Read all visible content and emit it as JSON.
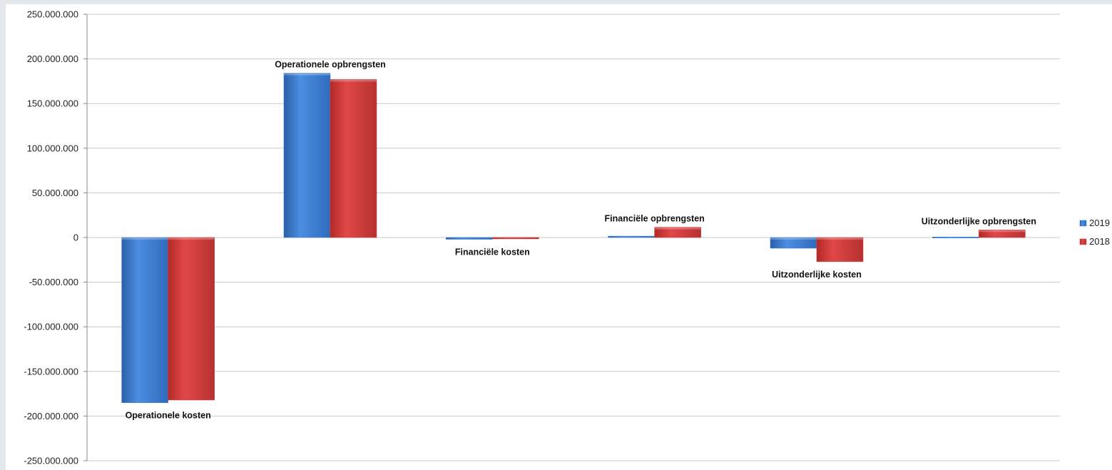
{
  "chart_data": {
    "type": "bar",
    "categories": [
      "Operationele kosten",
      "Operationele opbrengsten",
      "Financiële kosten",
      "Financiële opbrengsten",
      "Uitzonderlijke kosten",
      "Uitzonderlijke opbrengsten"
    ],
    "series": [
      {
        "name": "2019",
        "color": "#3f7fd1",
        "values": [
          -185000000,
          184000000,
          -2000000,
          1500000,
          -12000000,
          500000
        ]
      },
      {
        "name": "2018",
        "color": "#d83a3a",
        "values": [
          -182000000,
          177000000,
          -1500000,
          11500000,
          -27000000,
          8500000
        ]
      }
    ],
    "ylim": [
      -250000000,
      250000000
    ],
    "yticks": [
      250000000,
      200000000,
      150000000,
      100000000,
      50000000,
      0,
      -50000000,
      -100000000,
      -150000000,
      -200000000,
      -250000000
    ],
    "ytick_labels": [
      "250.000.000",
      "200.000.000",
      "150.000.000",
      "100.000.000",
      "50.000.000",
      "0",
      "-50.000.000",
      "-100.000.000",
      "-150.000.000",
      "-200.000.000",
      "-250.000.000"
    ],
    "grid": true,
    "legend": "right",
    "title": "",
    "xlabel": "",
    "ylabel": ""
  }
}
